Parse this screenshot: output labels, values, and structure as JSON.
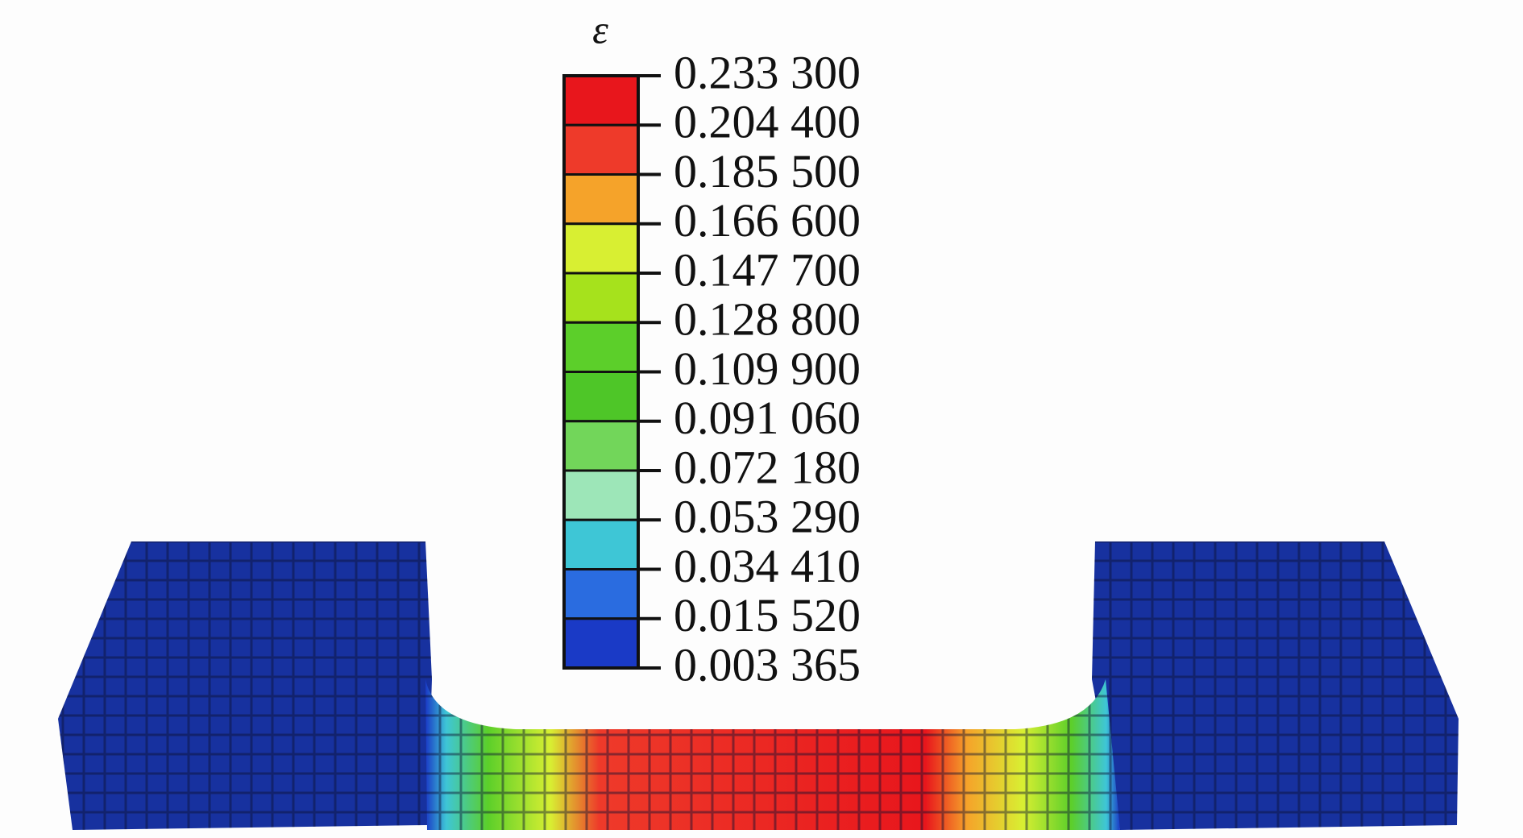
{
  "colorbar": {
    "symbol": "ε",
    "labels": [
      "0.233 300",
      "0.204 400",
      "0.185 500",
      "0.166 600",
      "0.147 700",
      "0.128 800",
      "0.109 900",
      "0.091 060",
      "0.072 180",
      "0.053 290",
      "0.034 410",
      "0.015 520",
      "0.003 365"
    ],
    "colors": [
      "#e8161c",
      "#ee3a2a",
      "#f5a32a",
      "#d8ef32",
      "#a6e21c",
      "#5ccf2a",
      "#4ec628",
      "#72d65a",
      "#9de6b8",
      "#3ec6d6",
      "#2a6ce0",
      "#1a3ac6"
    ]
  }
}
